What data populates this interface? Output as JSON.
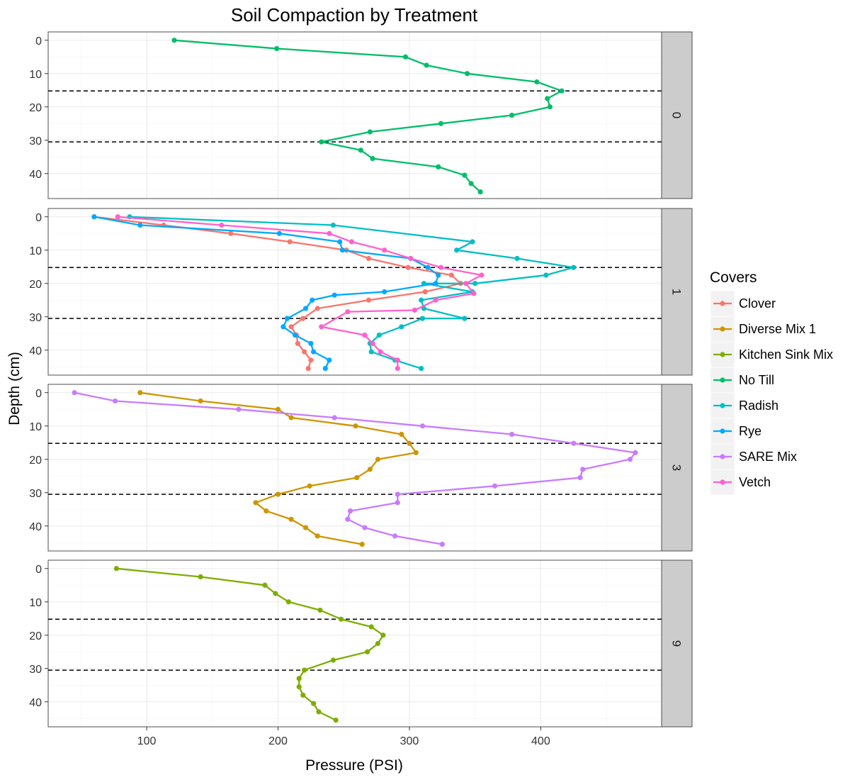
{
  "chart_data": {
    "type": "line",
    "title": "Soil Compaction by Treatment",
    "xlabel": "Pressure (PSI)",
    "ylabel": "Depth (cm)",
    "xlim": [
      25,
      492
    ],
    "ylim": [
      -2.5,
      47.5
    ],
    "y_reversed": true,
    "x_ticks": [
      100,
      200,
      300,
      400
    ],
    "y_ticks": [
      0,
      10,
      20,
      30,
      40
    ],
    "reference_lines_y": [
      15.2,
      30.5
    ],
    "grid": true,
    "legend": {
      "title": "Covers",
      "position": "right"
    },
    "series_colors": {
      "Clover": "#F8766D",
      "Diverse Mix 1": "#CD9600",
      "Kitchen Sink Mix": "#7CAE00",
      "No Till": "#00BE67",
      "Radish": "#00BFC4",
      "Rye": "#00A9FF",
      "SARE Mix": "#C77CFF",
      "Vetch": "#FF61CC"
    },
    "panels": [
      {
        "label": "0",
        "series": [
          {
            "name": "No Till",
            "points": [
              [
                121,
                0
              ],
              [
                199,
                2.5
              ],
              [
                297,
                5
              ],
              [
                313,
                7.5
              ],
              [
                344,
                10
              ],
              [
                397,
                12.5
              ],
              [
                416,
                15.2
              ],
              [
                405,
                17.5
              ],
              [
                407,
                20
              ],
              [
                378,
                22.5
              ],
              [
                324,
                25
              ],
              [
                270,
                27.5
              ],
              [
                233,
                30.5
              ],
              [
                263,
                33
              ],
              [
                272,
                35.5
              ],
              [
                322,
                38
              ],
              [
                342,
                40.5
              ],
              [
                347,
                43
              ],
              [
                354,
                45.5
              ]
            ]
          }
        ]
      },
      {
        "label": "1",
        "series": [
          {
            "name": "Clover",
            "points": [
              [
                60,
                0
              ],
              [
                113,
                2.5
              ],
              [
                164,
                5
              ],
              [
                209,
                7.5
              ],
              [
                252,
                10
              ],
              [
                269,
                12.5
              ],
              [
                299,
                15.2
              ],
              [
                332,
                17.5
              ],
              [
                339,
                20
              ],
              [
                312,
                22.5
              ],
              [
                269,
                25
              ],
              [
                230,
                27.5
              ],
              [
                219,
                30.5
              ],
              [
                210,
                33
              ],
              [
                214,
                35.5
              ],
              [
                215,
                38
              ],
              [
                220,
                40.5
              ],
              [
                225,
                43
              ],
              [
                223,
                45.5
              ]
            ]
          },
          {
            "name": "Radish",
            "points": [
              [
                87,
                0
              ],
              [
                242,
                2.5
              ],
              [
                348,
                7.5
              ],
              [
                336,
                10
              ],
              [
                382,
                12.5
              ],
              [
                425,
                15.2
              ],
              [
                404,
                17.5
              ],
              [
                350,
                20
              ],
              [
                311,
                20
              ],
              [
                348,
                22.5
              ],
              [
                309,
                25
              ],
              [
                311,
                27.5
              ],
              [
                342,
                30.5
              ],
              [
                310,
                30.5
              ],
              [
                294,
                33
              ],
              [
                277,
                35.5
              ],
              [
                270,
                38
              ],
              [
                271,
                40.5
              ],
              [
                289,
                43
              ],
              [
                309,
                45.5
              ]
            ]
          },
          {
            "name": "Rye",
            "points": [
              [
                60,
                0
              ],
              [
                95,
                2.5
              ],
              [
                201,
                5
              ],
              [
                247,
                7.5
              ],
              [
                249,
                10
              ],
              [
                301,
                12.5
              ],
              [
                314,
                15.2
              ],
              [
                322,
                17.5
              ],
              [
                320,
                20
              ],
              [
                281,
                22.5
              ],
              [
                243,
                23.5
              ],
              [
                226,
                25
              ],
              [
                221,
                27.5
              ],
              [
                207,
                30.5
              ],
              [
                204,
                33
              ],
              [
                213,
                35.5
              ],
              [
                225,
                38
              ],
              [
                227,
                40.5
              ],
              [
                239,
                43
              ],
              [
                236,
                45.5
              ]
            ]
          },
          {
            "name": "Vetch",
            "points": [
              [
                78,
                0
              ],
              [
                157,
                2.5
              ],
              [
                239,
                5
              ],
              [
                256,
                7.5
              ],
              [
                281,
                10
              ],
              [
                301,
                12.5
              ],
              [
                324,
                15.2
              ],
              [
                355,
                17.5
              ],
              [
                343,
                20
              ],
              [
                349,
                23
              ],
              [
                320,
                25
              ],
              [
                304,
                28
              ],
              [
                253,
                28.5
              ],
              [
                233,
                33
              ],
              [
                266,
                35.5
              ],
              [
                272,
                38
              ],
              [
                278,
                40.5
              ],
              [
                291,
                43
              ],
              [
                291,
                45.5
              ]
            ]
          }
        ]
      },
      {
        "label": "3",
        "series": [
          {
            "name": "Diverse Mix 1",
            "points": [
              [
                95,
                0
              ],
              [
                141,
                2.5
              ],
              [
                200,
                5
              ],
              [
                210,
                7.5
              ],
              [
                259,
                10
              ],
              [
                294,
                12.5
              ],
              [
                300,
                15.2
              ],
              [
                305,
                18
              ],
              [
                276,
                20
              ],
              [
                270,
                23
              ],
              [
                260,
                25.5
              ],
              [
                224,
                28
              ],
              [
                200,
                30.5
              ],
              [
                183,
                33
              ],
              [
                191,
                35.5
              ],
              [
                210,
                38
              ],
              [
                221,
                40.5
              ],
              [
                230,
                43
              ],
              [
                264,
                45.5
              ]
            ]
          },
          {
            "name": "SARE Mix",
            "points": [
              [
                45,
                0
              ],
              [
                76,
                2.5
              ],
              [
                170,
                5
              ],
              [
                243,
                7.5
              ],
              [
                310,
                10
              ],
              [
                378,
                12.5
              ],
              [
                425,
                15.2
              ],
              [
                472,
                18
              ],
              [
                468,
                20
              ],
              [
                432,
                23
              ],
              [
                430,
                25.5
              ],
              [
                365,
                28
              ],
              [
                291,
                30.5
              ],
              [
                291,
                33
              ],
              [
                255,
                35.5
              ],
              [
                253,
                38
              ],
              [
                266,
                40.5
              ],
              [
                289,
                43
              ],
              [
                325,
                45.5
              ]
            ]
          }
        ]
      },
      {
        "label": "9",
        "series": [
          {
            "name": "Kitchen Sink Mix",
            "points": [
              [
                77,
                0
              ],
              [
                141,
                2.5
              ],
              [
                190,
                5
              ],
              [
                198,
                7.5
              ],
              [
                208,
                10
              ],
              [
                232,
                12.5
              ],
              [
                248,
                15.2
              ],
              [
                271,
                17.5
              ],
              [
                280,
                20
              ],
              [
                276,
                22.5
              ],
              [
                268,
                25
              ],
              [
                242,
                27.5
              ],
              [
                220,
                30.5
              ],
              [
                216,
                33
              ],
              [
                216,
                35.5
              ],
              [
                219,
                38
              ],
              [
                227,
                40.5
              ],
              [
                231,
                43
              ],
              [
                244,
                45.5
              ]
            ]
          }
        ]
      }
    ]
  }
}
